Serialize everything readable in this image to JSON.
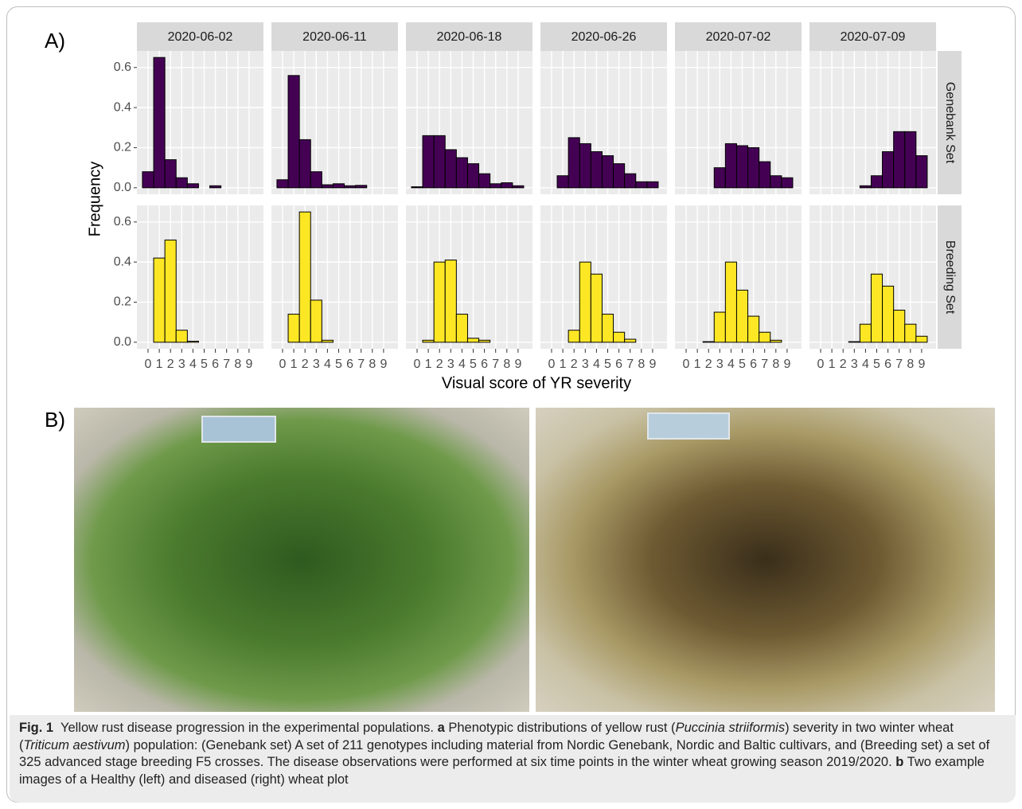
{
  "panel_a_label": "A)",
  "panel_b_label": "B)",
  "chart_data": {
    "type": "bar",
    "x_label": "Visual score of YR severity",
    "y_label": "Frequency",
    "columns": [
      "2020-06-02",
      "2020-06-11",
      "2020-06-18",
      "2020-06-26",
      "2020-07-02",
      "2020-07-09"
    ],
    "categories": [
      0,
      1,
      2,
      3,
      4,
      5,
      6,
      7,
      8,
      9
    ],
    "series": [
      {
        "name": "Genebank Set",
        "color": "#440154",
        "values": [
          [
            0.08,
            0.65,
            0.14,
            0.05,
            0.02,
            0,
            0.01,
            0,
            0,
            0
          ],
          [
            0.04,
            0.56,
            0.24,
            0.08,
            0.015,
            0.02,
            0.01,
            0.012,
            0,
            0
          ],
          [
            0.005,
            0.26,
            0.26,
            0.19,
            0.15,
            0.12,
            0.07,
            0.02,
            0.025,
            0.01
          ],
          [
            0,
            0.06,
            0.25,
            0.22,
            0.18,
            0.16,
            0.12,
            0.07,
            0.03,
            0.03
          ],
          [
            0,
            0,
            0,
            0.1,
            0.22,
            0.21,
            0.2,
            0.13,
            0.06,
            0.05
          ],
          [
            0,
            0,
            0,
            0,
            0.01,
            0.06,
            0.18,
            0.28,
            0.28,
            0.16
          ]
        ]
      },
      {
        "name": "Breeding Set",
        "color": "#fde725",
        "values": [
          [
            0,
            0.42,
            0.51,
            0.06,
            0.005,
            0,
            0,
            0,
            0,
            0
          ],
          [
            0,
            0.14,
            0.65,
            0.21,
            0.01,
            0,
            0,
            0,
            0,
            0
          ],
          [
            0,
            0.01,
            0.4,
            0.41,
            0.14,
            0.02,
            0.01,
            0,
            0,
            0
          ],
          [
            0,
            0,
            0.06,
            0.4,
            0.34,
            0.14,
            0.05,
            0.015,
            0,
            0
          ],
          [
            0,
            0,
            0.003,
            0.15,
            0.4,
            0.26,
            0.13,
            0.05,
            0.01,
            0
          ],
          [
            0,
            0,
            0,
            0.003,
            0.09,
            0.34,
            0.28,
            0.16,
            0.09,
            0.03
          ]
        ]
      }
    ],
    "ylim": [
      -0.0325,
      0.6825
    ],
    "yticks": [
      {
        "value": 0,
        "label": "0.0"
      },
      0.2,
      0.4,
      0.6
    ],
    "grid": true
  },
  "caption": [
    "Fig. 1",
    "  Yellow rust disease progression in the experimental populations. ",
    "a",
    " Phenotypic distributions of yellow rust (",
    "Puccinia striiformis",
    ") severity in two winter wheat (",
    "Triticum aestivum",
    ") population: (Genebank set) A set of 211 genotypes including material from Nordic Genebank, Nordic and Baltic cultivars, and (Breeding set) a set of 325 advanced stage breeding F5 crosses. The disease observations were performed at six time points in the winter wheat growing season 2019/2020. ",
    "b",
    " Two example images of a Healthy (left) and diseased (right) wheat plot"
  ]
}
